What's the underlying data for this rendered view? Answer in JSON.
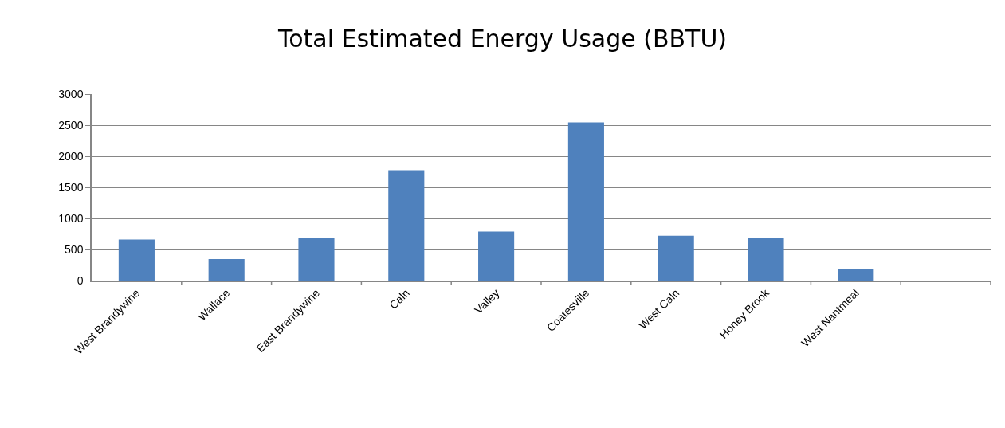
{
  "chart_data": {
    "type": "bar",
    "title": "Total Estimated Energy Usage (BBTU)",
    "categories": [
      "West Brandywine",
      "Wallace",
      "East Brandywine",
      "Caln",
      "Valley",
      "Coatesville",
      "West Caln",
      "Honey Brook",
      "West Nantmeal",
      null
    ],
    "values": [
      660,
      345,
      685,
      1775,
      790,
      2545,
      720,
      690,
      180,
      null
    ],
    "color": "#4f81bd",
    "ylim": [
      0,
      3000
    ],
    "yticks": [
      0,
      500,
      1000,
      1500,
      2000,
      2500,
      3000
    ],
    "grid": "y",
    "legend": false
  }
}
